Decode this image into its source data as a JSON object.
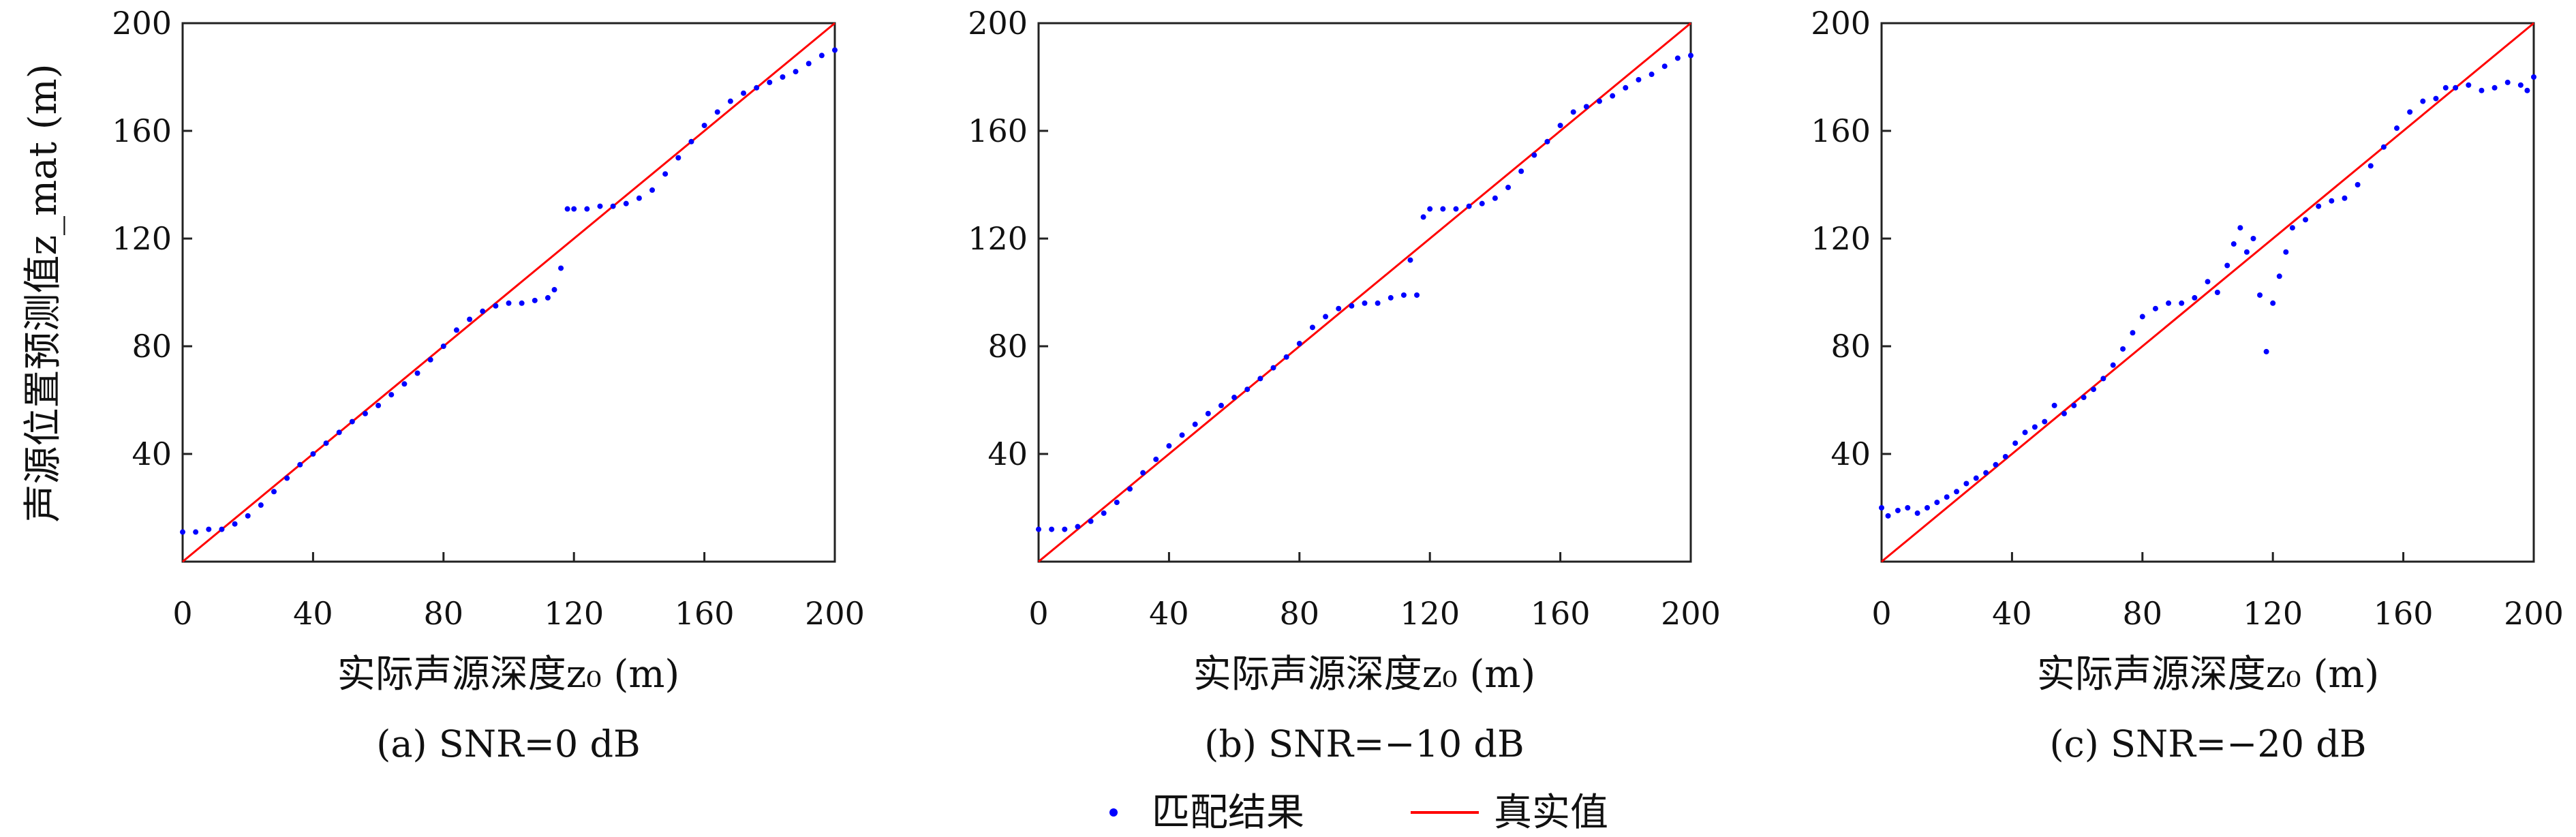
{
  "legend": {
    "points_label": "匹配结果",
    "line_label": "真实值",
    "points_color": "#0000ff",
    "line_color": "#ff0000"
  },
  "chart_data": [
    {
      "type": "scatter",
      "caption": "(a) SNR=0 dB",
      "xlabel": "实际声源深度z₀ (m)",
      "ylabel": "声源位置预测值z_mat (m)",
      "xlim": [
        0,
        200
      ],
      "ylim": [
        0,
        200
      ],
      "xticks": [
        0,
        40,
        80,
        120,
        160,
        200
      ],
      "yticks": [
        40,
        80,
        120,
        160,
        200
      ],
      "grid": false,
      "series": [
        {
          "name": "匹配结果",
          "x": [
            0,
            4,
            8,
            12,
            16,
            20,
            24,
            28,
            32,
            36,
            40,
            44,
            48,
            52,
            56,
            60,
            64,
            68,
            72,
            76,
            80,
            84,
            88,
            92,
            96,
            100,
            104,
            108,
            112,
            114,
            116,
            118,
            120,
            124,
            128,
            132,
            136,
            140,
            144,
            148,
            152,
            156,
            160,
            164,
            168,
            172,
            176,
            180,
            184,
            188,
            192,
            196,
            200
          ],
          "y": [
            11,
            11,
            12,
            12,
            14,
            17,
            21,
            26,
            31,
            36,
            40,
            44,
            48,
            52,
            55,
            58,
            62,
            66,
            70,
            75,
            80,
            86,
            90,
            93,
            95,
            96,
            96,
            97,
            98,
            101,
            109,
            131,
            131,
            131,
            132,
            132,
            133,
            135,
            138,
            144,
            150,
            156,
            162,
            167,
            171,
            174,
            176,
            178,
            180,
            182,
            185,
            188,
            190
          ]
        },
        {
          "name": "真实值",
          "x": [
            0,
            200
          ],
          "y": [
            0,
            200
          ]
        }
      ]
    },
    {
      "type": "scatter",
      "caption": "(b) SNR=−10 dB",
      "xlabel": "实际声源深度z₀ (m)",
      "ylabel": "",
      "xlim": [
        0,
        200
      ],
      "ylim": [
        0,
        200
      ],
      "xticks": [
        0,
        40,
        80,
        120,
        160,
        200
      ],
      "yticks": [
        40,
        80,
        120,
        160,
        200
      ],
      "grid": false,
      "series": [
        {
          "name": "匹配结果",
          "x": [
            0,
            4,
            8,
            12,
            16,
            20,
            24,
            28,
            32,
            36,
            40,
            44,
            48,
            52,
            56,
            60,
            64,
            68,
            72,
            76,
            80,
            84,
            88,
            92,
            96,
            100,
            104,
            108,
            112,
            114,
            116,
            118,
            120,
            124,
            128,
            132,
            136,
            140,
            144,
            148,
            152,
            156,
            160,
            164,
            168,
            172,
            176,
            180,
            184,
            188,
            192,
            196,
            200
          ],
          "y": [
            12,
            12,
            12,
            13,
            15,
            18,
            22,
            27,
            33,
            38,
            43,
            47,
            51,
            55,
            58,
            61,
            64,
            68,
            72,
            76,
            81,
            87,
            91,
            94,
            95,
            96,
            96,
            98,
            99,
            112,
            99,
            128,
            131,
            131,
            131,
            132,
            133,
            135,
            139,
            145,
            151,
            156,
            162,
            167,
            169,
            171,
            173,
            176,
            179,
            181,
            184,
            187,
            188
          ]
        },
        {
          "name": "真实值",
          "x": [
            0,
            200
          ],
          "y": [
            0,
            200
          ]
        }
      ]
    },
    {
      "type": "scatter",
      "caption": "(c) SNR=−20 dB",
      "xlabel": "实际声源深度z₀ (m)",
      "ylabel": "",
      "xlim": [
        0,
        200
      ],
      "ylim": [
        0,
        200
      ],
      "xticks": [
        0,
        40,
        80,
        120,
        160,
        200
      ],
      "yticks": [
        40,
        80,
        120,
        160,
        200
      ],
      "grid": false,
      "series": [
        {
          "name": "匹配结果",
          "x": [
            0,
            2,
            5,
            8,
            11,
            14,
            17,
            20,
            23,
            26,
            29,
            32,
            35,
            38,
            41,
            44,
            47,
            50,
            53,
            56,
            59,
            62,
            65,
            68,
            71,
            74,
            77,
            80,
            84,
            88,
            92,
            96,
            100,
            103,
            106,
            108,
            110,
            112,
            114,
            116,
            118,
            120,
            122,
            124,
            126,
            130,
            134,
            138,
            142,
            146,
            150,
            154,
            158,
            162,
            166,
            170,
            173,
            176,
            180,
            184,
            188,
            192,
            196,
            198,
            200
          ],
          "y": [
            20,
            17,
            19,
            20,
            18,
            20,
            22,
            24,
            26,
            29,
            31,
            33,
            36,
            39,
            44,
            48,
            50,
            52,
            58,
            55,
            58,
            61,
            64,
            68,
            73,
            79,
            85,
            91,
            94,
            96,
            96,
            98,
            104,
            100,
            110,
            118,
            124,
            115,
            120,
            99,
            78,
            96,
            106,
            115,
            124,
            127,
            132,
            134,
            135,
            140,
            147,
            154,
            161,
            167,
            171,
            172,
            176,
            176,
            177,
            175,
            176,
            178,
            177,
            175,
            180
          ]
        },
        {
          "name": "真实值",
          "x": [
            0,
            200
          ],
          "y": [
            0,
            200
          ]
        }
      ]
    }
  ]
}
